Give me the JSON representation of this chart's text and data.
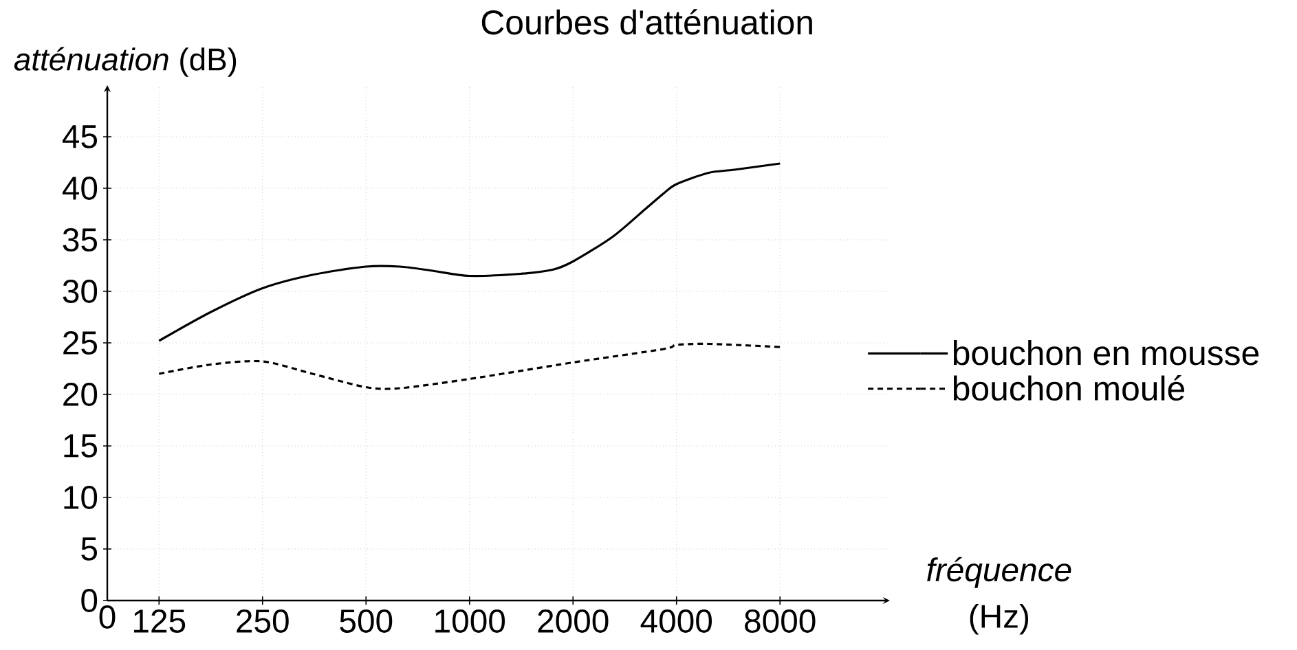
{
  "chart_data": {
    "type": "line",
    "title": "Courbes d'atténuation",
    "ylabel": "*atténuation* (dB)",
    "xlabel": "*fréquence* (Hz)",
    "log": "x",
    "xlim": [
      0,
      16700
    ],
    "ylim": [
      0,
      50
    ],
    "xticks": [
      0,
      125,
      250,
      500,
      1000,
      2000,
      4000,
      8000
    ],
    "yticks": [
      0,
      5,
      10,
      15,
      20,
      25,
      30,
      35,
      40,
      45
    ],
    "grid": true,
    "legend": "right",
    "series": [
      {
        "name": "bouchon en mousse",
        "color": "#000000",
        "line_style": "solid",
        "x": [
          125,
          177,
          250,
          349,
          500,
          627,
          780,
          1000,
          1405,
          1745,
          2000,
          2610,
          3250,
          3670,
          4000,
          4960,
          5900,
          8000
        ],
        "values": [
          25.2,
          28.0,
          30.3,
          31.6,
          32.4,
          32.4,
          32.0,
          31.5,
          31.7,
          32.1,
          32.9,
          35.3,
          38.0,
          39.5,
          40.4,
          41.5,
          41.8,
          42.4
        ]
      },
      {
        "name": "bouchon moulé",
        "color": "#000000",
        "line_style": "dashed",
        "x": [
          125,
          177,
          250,
          349,
          500,
          627,
          1000,
          2000,
          3670,
          4000,
          4960,
          8000
        ],
        "values": [
          22.0,
          22.9,
          23.2,
          22.0,
          20.7,
          20.6,
          21.5,
          23.1,
          24.4,
          24.8,
          24.9,
          24.6
        ]
      }
    ]
  }
}
